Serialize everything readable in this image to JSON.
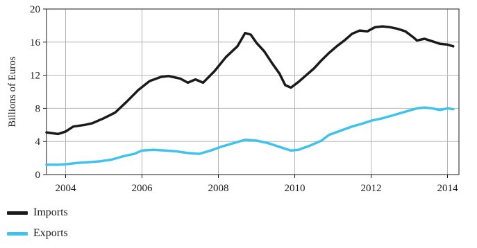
{
  "chart_data": {
    "type": "line",
    "title": "",
    "xlabel": "",
    "ylabel": "Billions of Euros",
    "xlim": [
      2003.5,
      2014.3
    ],
    "ylim": [
      0,
      20
    ],
    "x_ticks": [
      2004,
      2006,
      2008,
      2010,
      2012,
      2014
    ],
    "x_tick_labels": [
      "2004",
      "2006",
      "2008",
      "2010",
      "2012",
      "2014"
    ],
    "y_ticks": [
      0,
      4,
      8,
      12,
      16,
      20
    ],
    "y_tick_labels": [
      "0",
      "4",
      "8",
      "12",
      "16",
      "20"
    ],
    "grid": true,
    "legend_position": "bottom-left",
    "series": [
      {
        "name": "Imports",
        "color": "#1a1a1a",
        "points": [
          [
            2003.5,
            5.1
          ],
          [
            2003.8,
            4.9
          ],
          [
            2004.0,
            5.2
          ],
          [
            2004.2,
            5.8
          ],
          [
            2004.5,
            6.0
          ],
          [
            2004.7,
            6.2
          ],
          [
            2005.0,
            6.8
          ],
          [
            2005.3,
            7.5
          ],
          [
            2005.6,
            8.8
          ],
          [
            2005.9,
            10.2
          ],
          [
            2006.2,
            11.3
          ],
          [
            2006.5,
            11.8
          ],
          [
            2006.7,
            11.9
          ],
          [
            2007.0,
            11.6
          ],
          [
            2007.2,
            11.1
          ],
          [
            2007.4,
            11.5
          ],
          [
            2007.6,
            11.1
          ],
          [
            2007.9,
            12.5
          ],
          [
            2008.2,
            14.2
          ],
          [
            2008.5,
            15.5
          ],
          [
            2008.7,
            17.1
          ],
          [
            2008.85,
            16.9
          ],
          [
            2009.0,
            15.9
          ],
          [
            2009.2,
            14.9
          ],
          [
            2009.4,
            13.5
          ],
          [
            2009.6,
            12.2
          ],
          [
            2009.75,
            10.8
          ],
          [
            2009.9,
            10.5
          ],
          [
            2010.1,
            11.2
          ],
          [
            2010.3,
            12.0
          ],
          [
            2010.5,
            12.8
          ],
          [
            2010.7,
            13.8
          ],
          [
            2010.9,
            14.7
          ],
          [
            2011.1,
            15.5
          ],
          [
            2011.3,
            16.2
          ],
          [
            2011.5,
            17.0
          ],
          [
            2011.7,
            17.4
          ],
          [
            2011.9,
            17.3
          ],
          [
            2012.1,
            17.8
          ],
          [
            2012.3,
            17.9
          ],
          [
            2012.5,
            17.8
          ],
          [
            2012.7,
            17.6
          ],
          [
            2012.9,
            17.3
          ],
          [
            2013.1,
            16.6
          ],
          [
            2013.2,
            16.2
          ],
          [
            2013.4,
            16.4
          ],
          [
            2013.6,
            16.1
          ],
          [
            2013.8,
            15.8
          ],
          [
            2014.0,
            15.7
          ],
          [
            2014.15,
            15.5
          ]
        ]
      },
      {
        "name": "Exports",
        "color": "#3fc3ec",
        "points": [
          [
            2003.5,
            1.2
          ],
          [
            2003.8,
            1.2
          ],
          [
            2004.0,
            1.25
          ],
          [
            2004.3,
            1.4
          ],
          [
            2004.6,
            1.5
          ],
          [
            2004.9,
            1.6
          ],
          [
            2005.2,
            1.8
          ],
          [
            2005.5,
            2.2
          ],
          [
            2005.8,
            2.5
          ],
          [
            2006.0,
            2.9
          ],
          [
            2006.3,
            3.0
          ],
          [
            2006.6,
            2.9
          ],
          [
            2006.9,
            2.8
          ],
          [
            2007.2,
            2.6
          ],
          [
            2007.5,
            2.5
          ],
          [
            2007.8,
            2.9
          ],
          [
            2008.1,
            3.4
          ],
          [
            2008.4,
            3.8
          ],
          [
            2008.7,
            4.2
          ],
          [
            2009.0,
            4.1
          ],
          [
            2009.3,
            3.8
          ],
          [
            2009.5,
            3.5
          ],
          [
            2009.7,
            3.2
          ],
          [
            2009.9,
            2.9
          ],
          [
            2010.1,
            3.0
          ],
          [
            2010.4,
            3.5
          ],
          [
            2010.7,
            4.1
          ],
          [
            2010.9,
            4.8
          ],
          [
            2011.2,
            5.3
          ],
          [
            2011.5,
            5.8
          ],
          [
            2011.8,
            6.2
          ],
          [
            2012.0,
            6.5
          ],
          [
            2012.3,
            6.8
          ],
          [
            2012.6,
            7.2
          ],
          [
            2012.9,
            7.6
          ],
          [
            2013.2,
            8.0
          ],
          [
            2013.4,
            8.1
          ],
          [
            2013.6,
            8.0
          ],
          [
            2013.8,
            7.8
          ],
          [
            2014.0,
            8.0
          ],
          [
            2014.15,
            7.9
          ]
        ]
      }
    ]
  }
}
